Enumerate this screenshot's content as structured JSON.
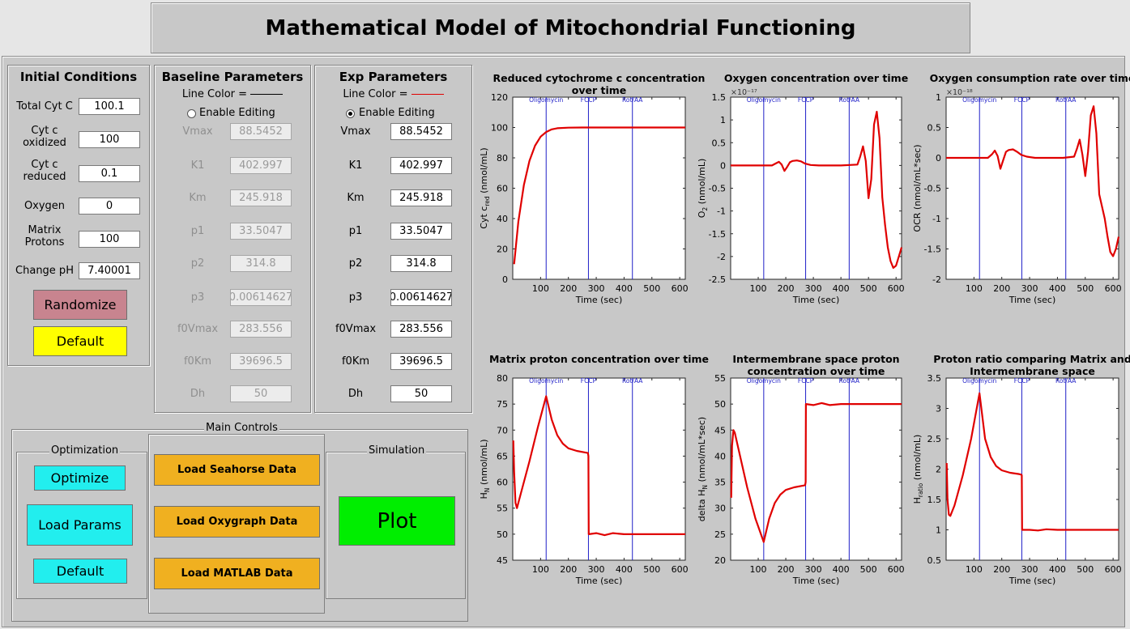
{
  "app_title": "Mathematical Model of Mitochondrial Functioning",
  "initial_conditions": {
    "title": "Initial Conditions",
    "fields": [
      {
        "label": "Total Cyt C",
        "value": "100.1"
      },
      {
        "label": "Cyt c oxidized",
        "value": "100"
      },
      {
        "label": "Cyt c reduced",
        "value": "0.1"
      },
      {
        "label": "Oxygen",
        "value": "0"
      },
      {
        "label": "Matrix Protons",
        "value": "100"
      },
      {
        "label": "Change pH",
        "value": "7.40001"
      }
    ],
    "randomize_label": "Randomize",
    "default_label": "Default"
  },
  "baseline": {
    "title": "Baseline Parameters",
    "line_color_label": "Line Color =",
    "line_color": "#000000",
    "enable_label": "Enable Editing",
    "enabled": false,
    "params": [
      {
        "label": "Vmax",
        "value": "88.5452"
      },
      {
        "label": "K1",
        "value": "402.997"
      },
      {
        "label": "Km",
        "value": "245.918"
      },
      {
        "label": "p1",
        "value": "33.5047"
      },
      {
        "label": "p2",
        "value": "314.8"
      },
      {
        "label": "p3",
        "value": "0.00614627"
      },
      {
        "label": "f0Vmax",
        "value": "283.556"
      },
      {
        "label": "f0Km",
        "value": "39696.5"
      },
      {
        "label": "Dh",
        "value": "50"
      }
    ]
  },
  "exp": {
    "title": "Exp Parameters",
    "line_color_label": "Line Color =",
    "line_color": "#e00000",
    "enable_label": "Enable Editing",
    "enabled": true,
    "params": [
      {
        "label": "Vmax",
        "value": "88.5452"
      },
      {
        "label": "K1",
        "value": "402.997"
      },
      {
        "label": "Km",
        "value": "245.918"
      },
      {
        "label": "p1",
        "value": "33.5047"
      },
      {
        "label": "p2",
        "value": "314.8"
      },
      {
        "label": "p3",
        "value": "0.00614627"
      },
      {
        "label": "f0Vmax",
        "value": "283.556"
      },
      {
        "label": "f0Km",
        "value": "39696.5"
      },
      {
        "label": "Dh",
        "value": "50"
      }
    ]
  },
  "main_controls": {
    "title": "Main Controls",
    "optimization": {
      "title": "Optimization",
      "optimize": "Optimize",
      "load_params": "Load Params",
      "default": "Default"
    },
    "loaders": [
      "Load Seahorse Data",
      "Load Oxygraph Data",
      "Load MATLAB Data"
    ],
    "simulation": {
      "title": "Simulation",
      "plot": "Plot"
    }
  },
  "colors": {
    "randomize": "#c8848f",
    "default_yellow": "#ffff00",
    "cyan": "#22eeee",
    "orange": "#f0b020",
    "green": "#00ee00",
    "curve": "#e00000",
    "event_line": "#2020c8"
  },
  "events": [
    {
      "label": "Oligomycin",
      "x": 120
    },
    {
      "label": "FCCP",
      "x": 272
    },
    {
      "label": "Rot/AA",
      "x": 430
    }
  ],
  "chart_data": [
    {
      "type": "line",
      "title": "Reduced cytochrome c concentration over time",
      "xlabel": "Time (sec)",
      "ylabel": "Cyt c",
      "ylabel_sub": "red",
      "ylabel_unit": " (nmol/mL)",
      "xlim": [
        0,
        620
      ],
      "ylim": [
        0,
        120
      ],
      "xticks": [
        "100",
        "200",
        "300",
        "400",
        "500",
        "600"
      ],
      "yticks": [
        "0",
        "20",
        "40",
        "60",
        "80",
        "100",
        "120"
      ],
      "exponent": "",
      "x": [
        5,
        20,
        40,
        60,
        80,
        100,
        120,
        140,
        160,
        200,
        250,
        300,
        400,
        500,
        620
      ],
      "y": [
        10,
        38,
        62,
        78,
        88,
        94,
        97,
        98.8,
        99.5,
        99.9,
        100,
        100,
        100,
        100,
        100
      ]
    },
    {
      "type": "line",
      "title": "Oxygen concentration over time",
      "xlabel": "Time (sec)",
      "ylabel": "O",
      "ylabel_sub": "2",
      "ylabel_unit": " (nmol/mL)",
      "xlim": [
        0,
        620
      ],
      "ylim": [
        -2.5,
        1.5
      ],
      "xticks": [
        "100",
        "200",
        "300",
        "400",
        "500",
        "600"
      ],
      "yticks": [
        "-2.5",
        "-2",
        "-1.5",
        "-1",
        "-0.5",
        "0",
        "0.5",
        "1",
        "1.5"
      ],
      "exponent": "×10⁻¹⁷",
      "x": [
        0,
        150,
        165,
        175,
        185,
        195,
        205,
        215,
        225,
        240,
        255,
        270,
        290,
        320,
        400,
        460,
        470,
        480,
        490,
        500,
        510,
        520,
        530,
        540,
        550,
        560,
        570,
        580,
        590,
        600,
        610,
        620
      ],
      "y": [
        0,
        0,
        0.05,
        0.08,
        0.02,
        -0.12,
        -0.03,
        0.07,
        0.1,
        0.11,
        0.09,
        0.04,
        0.01,
        0,
        0,
        0.02,
        0.2,
        0.42,
        0.1,
        -0.72,
        -0.3,
        0.9,
        1.18,
        0.6,
        -0.7,
        -1.3,
        -1.8,
        -2.1,
        -2.25,
        -2.2,
        -2.0,
        -1.8
      ]
    },
    {
      "type": "line",
      "title": "Oxygen consumption rate over time",
      "xlabel": "Time (sec)",
      "ylabel": "OCR (nmol/mL*sec)",
      "ylabel_sub": "",
      "ylabel_unit": "",
      "xlim": [
        0,
        620
      ],
      "ylim": [
        -2,
        1
      ],
      "xticks": [
        "100",
        "200",
        "300",
        "400",
        "500",
        "600"
      ],
      "yticks": [
        "-2",
        "-1.5",
        "-1",
        "-0.5",
        "0",
        "0.5",
        "1"
      ],
      "exponent": "×10⁻¹⁸",
      "x": [
        0,
        150,
        165,
        175,
        185,
        195,
        205,
        215,
        225,
        240,
        255,
        270,
        290,
        320,
        420,
        460,
        470,
        480,
        490,
        500,
        510,
        520,
        530,
        540,
        550,
        560,
        570,
        580,
        590,
        600,
        610,
        620
      ],
      "y": [
        0,
        0,
        0.06,
        0.12,
        0.03,
        -0.18,
        -0.04,
        0.1,
        0.13,
        0.14,
        0.1,
        0.05,
        0.02,
        0,
        0,
        0.02,
        0.15,
        0.3,
        0.05,
        -0.3,
        0.1,
        0.7,
        0.85,
        0.4,
        -0.6,
        -0.8,
        -1.0,
        -1.3,
        -1.55,
        -1.62,
        -1.5,
        -1.3
      ]
    },
    {
      "type": "line",
      "title": "Matrix proton concentration over time",
      "xlabel": "Time (sec)",
      "ylabel": "H",
      "ylabel_sub": "N",
      "ylabel_unit": " (nmol/mL)",
      "xlim": [
        0,
        620
      ],
      "ylim": [
        45,
        80
      ],
      "xticks": [
        "100",
        "200",
        "300",
        "400",
        "500",
        "600"
      ],
      "yticks": [
        "45",
        "50",
        "55",
        "60",
        "65",
        "70",
        "75",
        "80"
      ],
      "exponent": "",
      "x": [
        2,
        5,
        10,
        15,
        30,
        60,
        90,
        120,
        140,
        160,
        180,
        200,
        230,
        260,
        270,
        272,
        273,
        300,
        330,
        360,
        400,
        500,
        620
      ],
      "y": [
        68,
        62,
        56,
        55,
        58,
        64,
        70.5,
        76.5,
        72,
        69,
        67.4,
        66.5,
        66,
        65.7,
        65.6,
        65,
        50,
        50.2,
        49.8,
        50.2,
        50,
        50,
        50
      ]
    },
    {
      "type": "line",
      "title": "Intermembrane space proton concentration over time",
      "xlabel": "Time (sec)",
      "ylabel": "delta H",
      "ylabel_sub": "N",
      "ylabel_unit": " (nmol/mL*sec)",
      "xlim": [
        0,
        620
      ],
      "ylim": [
        20,
        55
      ],
      "xticks": [
        "100",
        "200",
        "300",
        "400",
        "500",
        "600"
      ],
      "yticks": [
        "20",
        "25",
        "30",
        "35",
        "40",
        "45",
        "50",
        "55"
      ],
      "exponent": "",
      "x": [
        2,
        5,
        10,
        15,
        30,
        60,
        90,
        120,
        140,
        160,
        180,
        200,
        230,
        260,
        270,
        272,
        273,
        300,
        330,
        360,
        400,
        500,
        620
      ],
      "y": [
        32,
        42,
        45,
        44.5,
        41,
        34,
        28,
        23.5,
        28,
        31,
        32.6,
        33.5,
        34,
        34.3,
        34.4,
        35,
        50,
        49.8,
        50.2,
        49.8,
        50,
        50,
        50
      ]
    },
    {
      "type": "line",
      "title": "Proton ratio comparing Matrix and Intermembrane space",
      "xlabel": "Time (sec)",
      "ylabel": "H",
      "ylabel_sub": "ratio",
      "ylabel_unit": " (nmol/mL)",
      "xlim": [
        0,
        620
      ],
      "ylim": [
        0.5,
        3.5
      ],
      "xticks": [
        "100",
        "200",
        "300",
        "400",
        "500",
        "600"
      ],
      "yticks": [
        "0.5",
        "1",
        "1.5",
        "2",
        "2.5",
        "3",
        "3.5"
      ],
      "exponent": "",
      "x": [
        2,
        5,
        10,
        15,
        30,
        60,
        90,
        120,
        140,
        160,
        180,
        200,
        230,
        260,
        270,
        272,
        273,
        300,
        330,
        360,
        400,
        500,
        620
      ],
      "y": [
        2.1,
        1.5,
        1.25,
        1.23,
        1.4,
        1.9,
        2.5,
        3.25,
        2.5,
        2.2,
        2.05,
        1.98,
        1.94,
        1.92,
        1.91,
        1.9,
        1.0,
        1.0,
        0.99,
        1.01,
        1.0,
        1.0,
        1.0
      ]
    }
  ]
}
